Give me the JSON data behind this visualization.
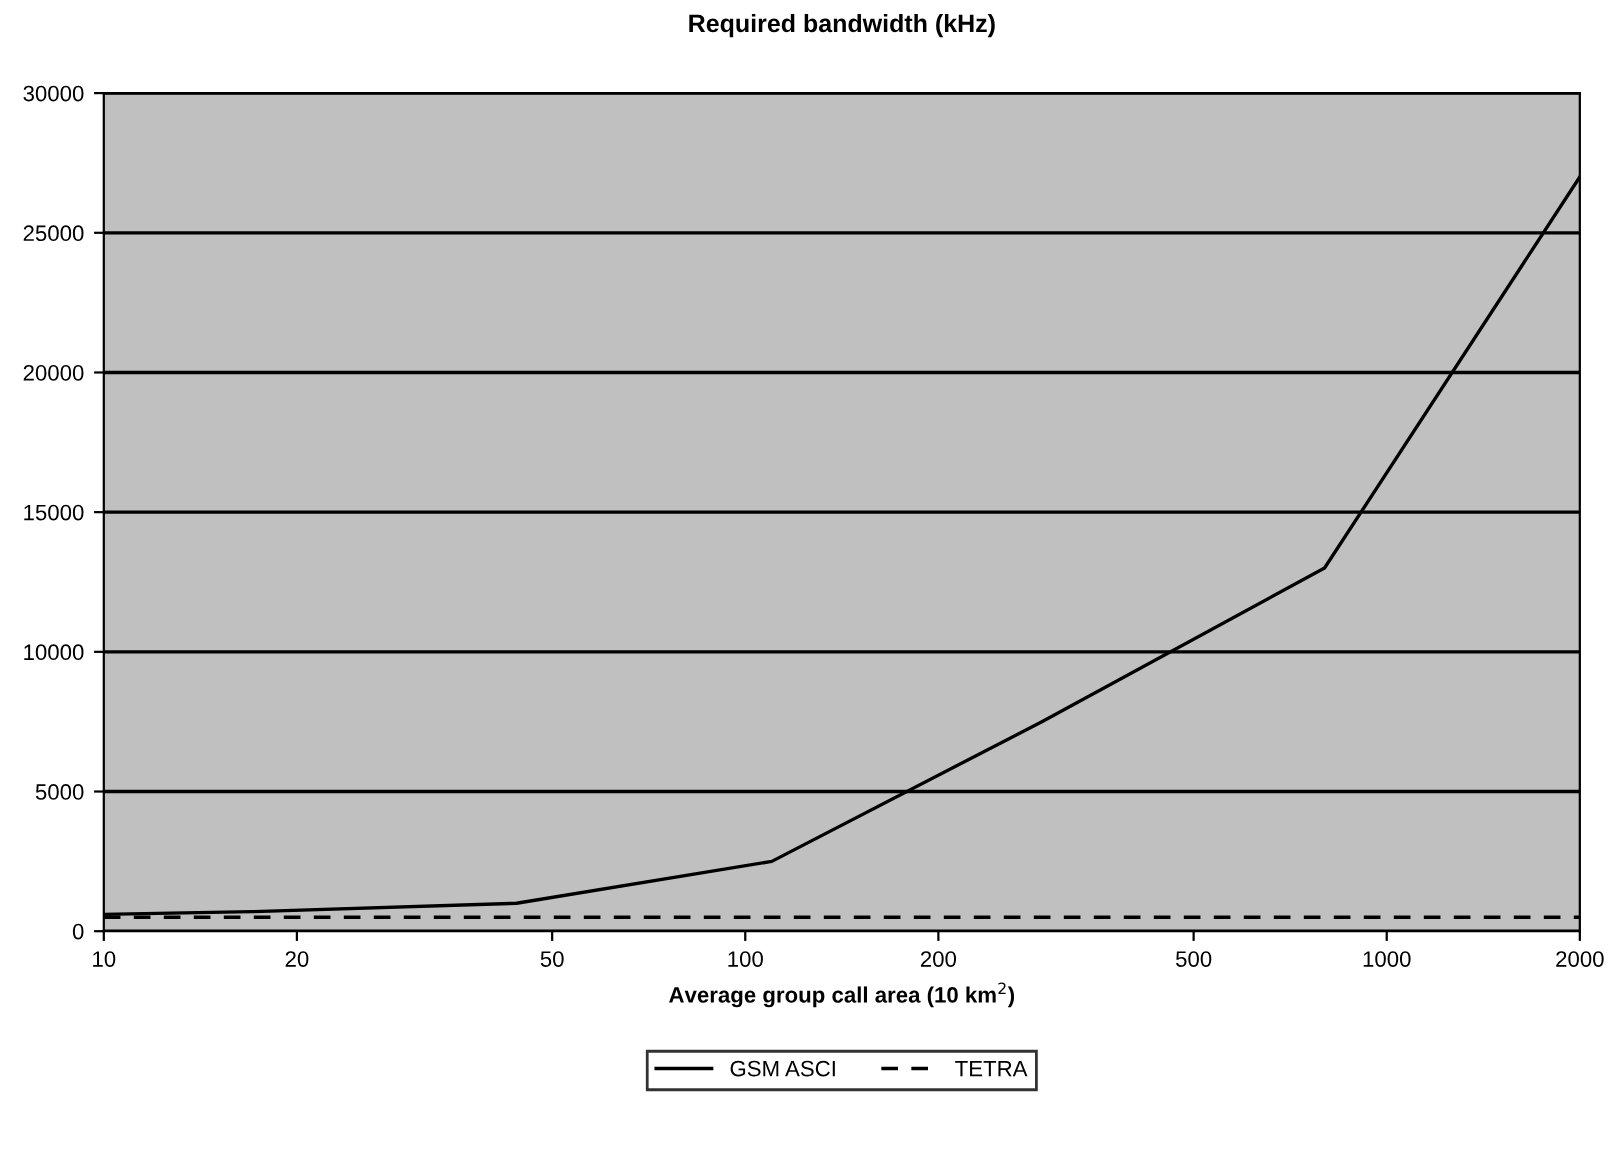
{
  "chart_data": {
    "type": "line",
    "title": "Required bandwidth (kHz)",
    "xlabel": "Average group call area (10 km$^{2}$)",
    "log": "x",
    "xlim": [
      10,
      2000
    ],
    "xticks": [
      10,
      20,
      50,
      100,
      200,
      500,
      1000,
      2000
    ],
    "ylim": [
      0,
      30000
    ],
    "yticks": [
      0,
      5000,
      10000,
      15000,
      20000,
      25000,
      30000
    ],
    "grid": "y",
    "legend": "bottom",
    "marker": "none",
    "series": [
      {
        "name": "GSM ASCI",
        "color": "#000000",
        "line_style": "solid",
        "x": [
          10,
          17,
          44,
          110,
          290,
          800,
          2000
        ],
        "values": [
          600,
          700,
          1000,
          2500,
          7500,
          13000,
          27000
        ]
      },
      {
        "name": "TETRA",
        "color": "#000000",
        "line_style": "dashed",
        "x": [
          10,
          2000
        ],
        "values": [
          500,
          500
        ]
      }
    ]
  }
}
